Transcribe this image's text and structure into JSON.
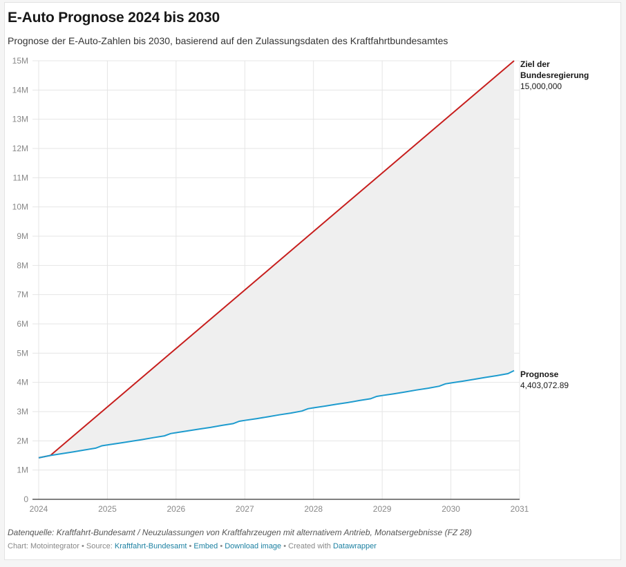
{
  "header": {
    "title": "E-Auto Prognose 2024 bis 2030",
    "subtitle": "Prognose der E-Auto-Zahlen bis 2030, basierend auf den Zulassungsdaten des Kraftfahrtbundesamtes"
  },
  "notes": "Datenquelle: Kraftfahrt-Bundesamt / Neuzulassungen von Kraftfahrzeugen mit alternativem Antrieb, Monatsergebnisse (FZ 28)",
  "footer": {
    "chart_by": "Chart: Motointegrator",
    "sep": " • ",
    "source_prefix": "Source: ",
    "source_link": "Kraftfahrt-Bundesamt",
    "embed_link": "Embed",
    "download_link": "Download image",
    "created_with": "Created with ",
    "datawrapper_link": "Datawrapper"
  },
  "colors": {
    "target": "#c71e1d",
    "forecast": "#1d9bce",
    "area": "#efefef",
    "grid": "#e5e5e5",
    "axis": "#333333"
  },
  "chart_data": {
    "type": "area",
    "title": "E-Auto Prognose 2024 bis 2030",
    "subtitle": "Prognose der E-Auto-Zahlen bis 2030, basierend auf den Zulassungsdaten des Kraftfahrtbundesamtes",
    "xlabel": "",
    "ylabel": "",
    "xlim": [
      2024,
      2031
    ],
    "ylim": [
      0,
      15000000
    ],
    "grid": true,
    "x_ticks": [
      "2024",
      "2025",
      "2026",
      "2027",
      "2028",
      "2029",
      "2030",
      "2031"
    ],
    "x_tick_values": [
      2024,
      2025,
      2026,
      2027,
      2028,
      2029,
      2030,
      2031
    ],
    "y_ticks": [
      "0",
      "1M",
      "2M",
      "3M",
      "4M",
      "5M",
      "6M",
      "7M",
      "8M",
      "9M",
      "10M",
      "11M",
      "12M",
      "13M",
      "14M",
      "15M"
    ],
    "y_tick_values": [
      0,
      1000000,
      2000000,
      3000000,
      4000000,
      5000000,
      6000000,
      7000000,
      8000000,
      9000000,
      10000000,
      11000000,
      12000000,
      13000000,
      14000000,
      15000000
    ],
    "series": [
      {
        "name": "Ziel der Bundesregierung",
        "label_line1": "Ziel der",
        "label_line2": "Bundesregierung",
        "end_value_label": "15,000,000",
        "x": [
          2024.0,
          2024.17,
          2030.92
        ],
        "values": [
          1420000,
          1500000,
          15000000
        ]
      },
      {
        "name": "Prognose",
        "label_line1": "Prognose",
        "end_value_label": "4,403,072.89",
        "x": [
          2024.0,
          2024.17,
          2024.33,
          2024.5,
          2024.67,
          2024.83,
          2024.92,
          2025.0,
          2025.17,
          2025.33,
          2025.5,
          2025.67,
          2025.83,
          2025.92,
          2026.0,
          2026.17,
          2026.33,
          2026.5,
          2026.67,
          2026.83,
          2026.92,
          2027.0,
          2027.17,
          2027.33,
          2027.5,
          2027.67,
          2027.83,
          2027.92,
          2028.0,
          2028.17,
          2028.33,
          2028.5,
          2028.67,
          2028.83,
          2028.92,
          2029.0,
          2029.17,
          2029.33,
          2029.5,
          2029.67,
          2029.83,
          2029.92,
          2030.0,
          2030.17,
          2030.33,
          2030.5,
          2030.67,
          2030.83,
          2030.92
        ],
        "values": [
          1420000,
          1500000,
          1560000,
          1620000,
          1690000,
          1750000,
          1830000,
          1860000,
          1920000,
          1980000,
          2040000,
          2110000,
          2170000,
          2250000,
          2280000,
          2340000,
          2400000,
          2460000,
          2530000,
          2590000,
          2670000,
          2700000,
          2760000,
          2820000,
          2890000,
          2950000,
          3020000,
          3100000,
          3130000,
          3190000,
          3250000,
          3310000,
          3380000,
          3440000,
          3520000,
          3550000,
          3610000,
          3670000,
          3740000,
          3800000,
          3870000,
          3950000,
          3980000,
          4040000,
          4100000,
          4170000,
          4230000,
          4300000,
          4403073
        ]
      }
    ]
  }
}
